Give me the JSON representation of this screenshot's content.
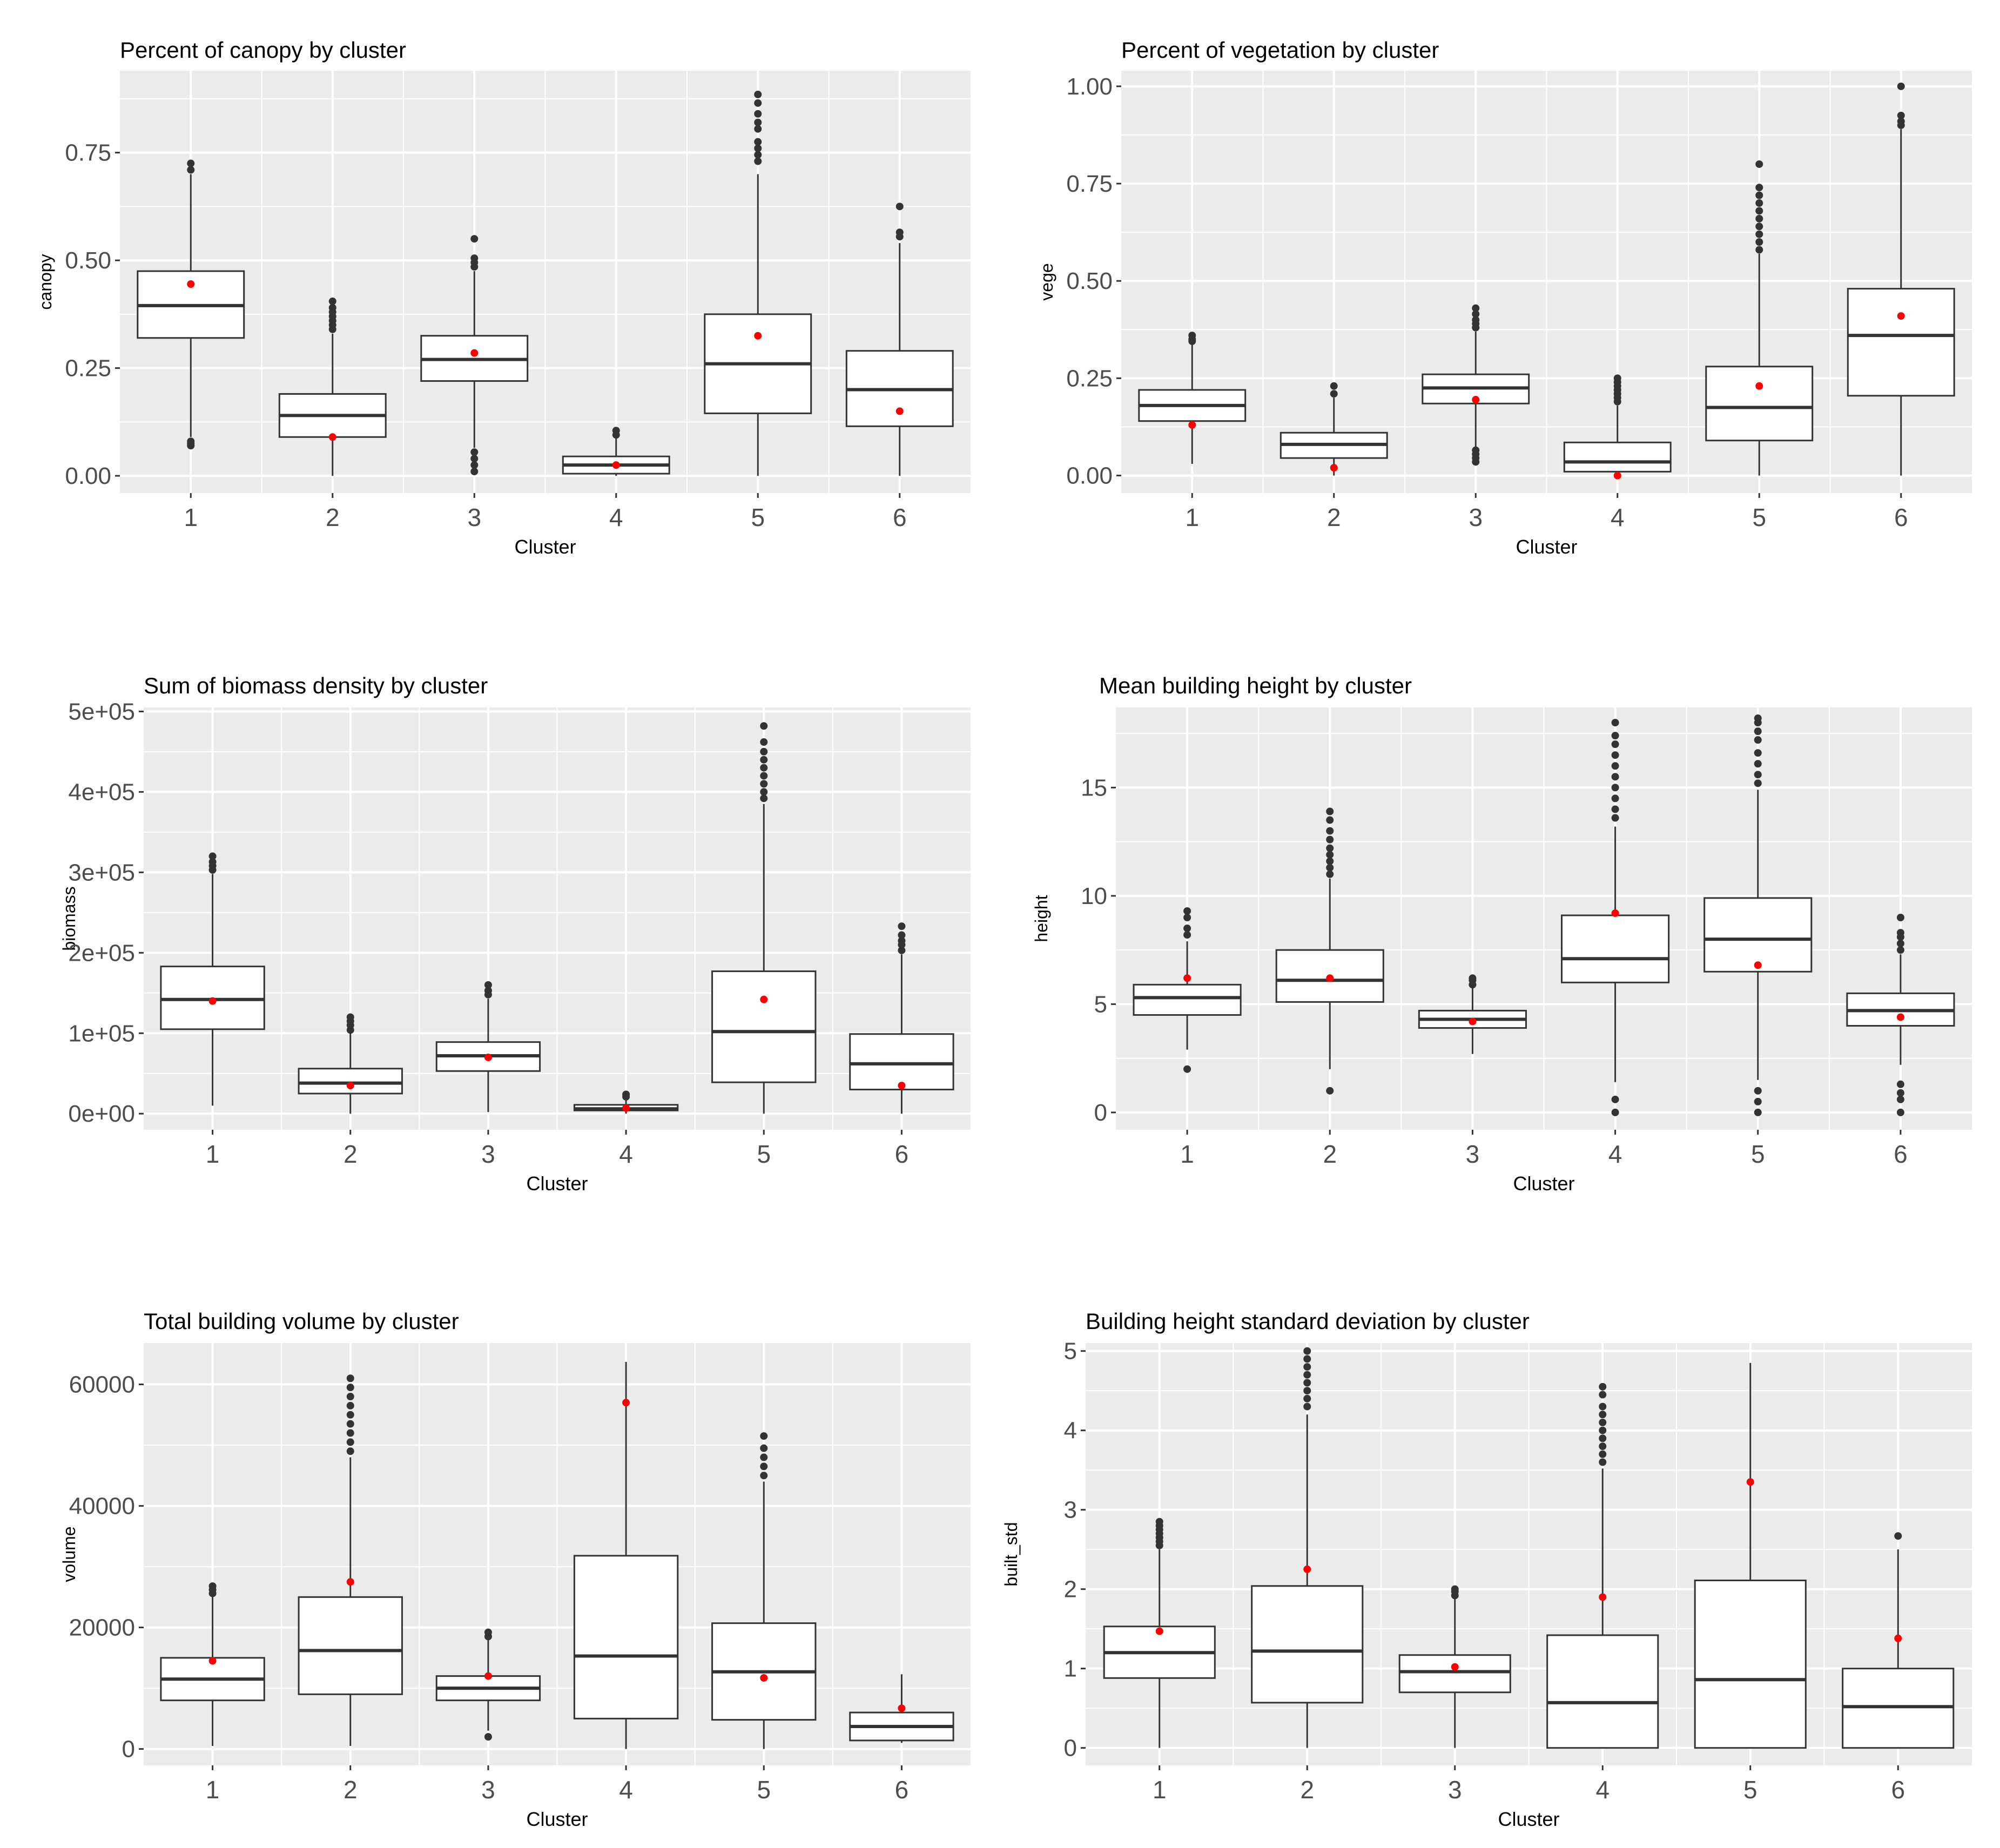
{
  "chart_data": [
    {
      "type": "boxplot",
      "title": "Percent of canopy by cluster",
      "xlabel": "Cluster",
      "ylabel": "canopy",
      "categories": [
        "1",
        "2",
        "3",
        "4",
        "5",
        "6"
      ],
      "ylim": [
        -0.04,
        0.94
      ],
      "yticks": [
        0,
        0.25,
        0.5,
        0.75
      ],
      "ytick_labels": [
        "0.00",
        "0.25",
        "0.50",
        "0.75"
      ],
      "boxes": [
        {
          "cluster": "1",
          "whisker_low": 0.09,
          "q1": 0.32,
          "median": 0.395,
          "q3": 0.475,
          "whisker_high": 0.7,
          "mean": 0.445,
          "outliers": [
            0.07,
            0.075,
            0.08,
            0.71,
            0.725
          ]
        },
        {
          "cluster": "2",
          "whisker_low": 0.0,
          "q1": 0.09,
          "median": 0.14,
          "q3": 0.19,
          "whisker_high": 0.33,
          "mean": 0.09,
          "outliers": [
            0.34,
            0.35,
            0.36,
            0.37,
            0.38,
            0.39,
            0.405
          ]
        },
        {
          "cluster": "3",
          "whisker_low": 0.065,
          "q1": 0.22,
          "median": 0.27,
          "q3": 0.325,
          "whisker_high": 0.475,
          "mean": 0.285,
          "outliers": [
            0.01,
            0.025,
            0.04,
            0.055,
            0.485,
            0.495,
            0.505,
            0.55
          ]
        },
        {
          "cluster": "4",
          "whisker_low": 0.0,
          "q1": 0.005,
          "median": 0.025,
          "q3": 0.045,
          "whisker_high": 0.09,
          "mean": 0.025,
          "outliers": [
            0.095,
            0.105
          ]
        },
        {
          "cluster": "5",
          "whisker_low": 0.0,
          "q1": 0.145,
          "median": 0.26,
          "q3": 0.375,
          "whisker_high": 0.7,
          "mean": 0.325,
          "outliers": [
            0.73,
            0.745,
            0.76,
            0.775,
            0.805,
            0.82,
            0.84,
            0.865,
            0.885
          ]
        },
        {
          "cluster": "6",
          "whisker_low": 0.0,
          "q1": 0.115,
          "median": 0.2,
          "q3": 0.29,
          "whisker_high": 0.54,
          "mean": 0.15,
          "outliers": [
            0.555,
            0.565,
            0.625
          ]
        }
      ]
    },
    {
      "type": "boxplot",
      "title": "Percent of vegetation by cluster",
      "xlabel": "Cluster",
      "ylabel": "vege",
      "categories": [
        "1",
        "2",
        "3",
        "4",
        "5",
        "6"
      ],
      "ylim": [
        -0.045,
        1.04
      ],
      "yticks": [
        0,
        0.25,
        0.5,
        0.75,
        1.0
      ],
      "ytick_labels": [
        "0.00",
        "0.25",
        "0.50",
        "0.75",
        "1.00"
      ],
      "boxes": [
        {
          "cluster": "1",
          "whisker_low": 0.03,
          "q1": 0.14,
          "median": 0.18,
          "q3": 0.22,
          "whisker_high": 0.34,
          "mean": 0.13,
          "outliers": [
            0.345,
            0.35,
            0.36
          ]
        },
        {
          "cluster": "2",
          "whisker_low": 0.0,
          "q1": 0.045,
          "median": 0.08,
          "q3": 0.11,
          "whisker_high": 0.2,
          "mean": 0.02,
          "outliers": [
            0.21,
            0.23
          ]
        },
        {
          "cluster": "3",
          "whisker_low": 0.065,
          "q1": 0.185,
          "median": 0.225,
          "q3": 0.26,
          "whisker_high": 0.37,
          "mean": 0.195,
          "outliers": [
            0.035,
            0.045,
            0.055,
            0.065,
            0.38,
            0.39,
            0.4,
            0.415,
            0.43
          ]
        },
        {
          "cluster": "4",
          "whisker_low": 0.0,
          "q1": 0.01,
          "median": 0.035,
          "q3": 0.085,
          "whisker_high": 0.18,
          "mean": 0.0,
          "outliers": [
            0.19,
            0.2,
            0.21,
            0.22,
            0.23,
            0.24,
            0.25
          ]
        },
        {
          "cluster": "5",
          "whisker_low": 0.0,
          "q1": 0.09,
          "median": 0.175,
          "q3": 0.28,
          "whisker_high": 0.57,
          "mean": 0.23,
          "outliers": [
            0.58,
            0.6,
            0.62,
            0.64,
            0.66,
            0.68,
            0.7,
            0.72,
            0.74,
            0.8
          ]
        },
        {
          "cluster": "6",
          "whisker_low": 0.0,
          "q1": 0.205,
          "median": 0.36,
          "q3": 0.48,
          "whisker_high": 0.89,
          "mean": 0.41,
          "outliers": [
            0.9,
            0.91,
            0.925,
            1.0
          ]
        }
      ]
    },
    {
      "type": "boxplot",
      "title": "Sum of biomass density by cluster",
      "xlabel": "Cluster",
      "ylabel": "biomass",
      "categories": [
        "1",
        "2",
        "3",
        "4",
        "5",
        "6"
      ],
      "ylim": [
        -20000,
        505000
      ],
      "yticks": [
        0,
        100000,
        200000,
        300000,
        400000,
        500000
      ],
      "ytick_labels": [
        "0e+00",
        "1e+05",
        "2e+05",
        "3e+05",
        "4e+05",
        "5e+05"
      ],
      "boxes": [
        {
          "cluster": "1",
          "whisker_low": 10000,
          "q1": 105000,
          "median": 142000,
          "q3": 183000,
          "whisker_high": 298000,
          "mean": 140000,
          "outliers": [
            303000,
            308000,
            313000,
            320000
          ]
        },
        {
          "cluster": "2",
          "whisker_low": 0,
          "q1": 25000,
          "median": 38000,
          "q3": 56000,
          "whisker_high": 100000,
          "mean": 35000,
          "outliers": [
            104000,
            110000,
            115000,
            120000
          ]
        },
        {
          "cluster": "3",
          "whisker_low": 2000,
          "q1": 53000,
          "median": 72000,
          "q3": 89000,
          "whisker_high": 143000,
          "mean": 70000,
          "outliers": [
            148000,
            153000,
            160000
          ]
        },
        {
          "cluster": "4",
          "whisker_low": 0,
          "q1": 4000,
          "median": 6000,
          "q3": 11000,
          "whisker_high": 19000,
          "mean": 7000,
          "outliers": [
            21000,
            24000
          ]
        },
        {
          "cluster": "5",
          "whisker_low": 0,
          "q1": 39000,
          "median": 102000,
          "q3": 177000,
          "whisker_high": 385000,
          "mean": 142000,
          "outliers": [
            392000,
            400000,
            410000,
            420000,
            430000,
            440000,
            450000,
            462000,
            482000
          ]
        },
        {
          "cluster": "6",
          "whisker_low": 0,
          "q1": 30000,
          "median": 62000,
          "q3": 99000,
          "whisker_high": 198000,
          "mean": 35000,
          "outliers": [
            203000,
            210000,
            215000,
            222000,
            233000
          ]
        }
      ]
    },
    {
      "type": "boxplot",
      "title": "Mean building height by cluster",
      "xlabel": "Cluster",
      "ylabel": "height",
      "categories": [
        "1",
        "2",
        "3",
        "4",
        "5",
        "6"
      ],
      "ylim": [
        -0.8,
        18.7
      ],
      "yticks": [
        0,
        5,
        10,
        15
      ],
      "ytick_labels": [
        "0",
        "5",
        "10",
        "15"
      ],
      "boxes": [
        {
          "cluster": "1",
          "whisker_low": 2.9,
          "q1": 4.5,
          "median": 5.3,
          "q3": 5.9,
          "whisker_high": 7.9,
          "mean": 6.2,
          "outliers": [
            2.0,
            8.2,
            8.5,
            9.0,
            9.3
          ]
        },
        {
          "cluster": "2",
          "whisker_low": 2.0,
          "q1": 5.1,
          "median": 6.1,
          "q3": 7.5,
          "whisker_high": 10.8,
          "mean": 6.2,
          "outliers": [
            1.0,
            11.0,
            11.3,
            11.6,
            11.9,
            12.2,
            12.6,
            13.0,
            13.5,
            13.9
          ]
        },
        {
          "cluster": "3",
          "whisker_low": 2.7,
          "q1": 3.9,
          "median": 4.3,
          "q3": 4.7,
          "whisker_high": 5.8,
          "mean": 4.2,
          "outliers": [
            5.9,
            6.1,
            6.2
          ]
        },
        {
          "cluster": "4",
          "whisker_low": 1.4,
          "q1": 6.0,
          "median": 7.1,
          "q3": 9.1,
          "whisker_high": 13.2,
          "mean": 9.2,
          "outliers": [
            0.0,
            0.6,
            13.6,
            14.0,
            14.5,
            15.0,
            15.5,
            16.0,
            16.5,
            17.0,
            17.4,
            18.0
          ]
        },
        {
          "cluster": "5",
          "whisker_low": 1.5,
          "q1": 6.5,
          "median": 8.0,
          "q3": 9.9,
          "whisker_high": 14.9,
          "mean": 6.8,
          "outliers": [
            0.0,
            0.5,
            1.0,
            15.2,
            15.6,
            16.1,
            16.6,
            17.2,
            17.6,
            18.0,
            18.2
          ]
        },
        {
          "cluster": "6",
          "whisker_low": 2.2,
          "q1": 4.0,
          "median": 4.7,
          "q3": 5.5,
          "whisker_high": 7.3,
          "mean": 4.4,
          "outliers": [
            0.0,
            0.6,
            0.9,
            1.3,
            7.5,
            7.8,
            8.1,
            8.3,
            9.0
          ]
        }
      ]
    },
    {
      "type": "boxplot",
      "title": "Total building volume by cluster",
      "xlabel": "Cluster",
      "ylabel": "volume",
      "categories": [
        "1",
        "2",
        "3",
        "4",
        "5",
        "6"
      ],
      "ylim": [
        -2700,
        66800
      ],
      "yticks": [
        0,
        20000,
        40000,
        60000
      ],
      "ytick_labels": [
        "0",
        "20000",
        "40000",
        "60000"
      ],
      "boxes": [
        {
          "cluster": "1",
          "whisker_low": 500,
          "q1": 8000,
          "median": 11500,
          "q3": 15000,
          "whisker_high": 25000,
          "mean": 14500,
          "outliers": [
            25600,
            26200,
            26800
          ]
        },
        {
          "cluster": "2",
          "whisker_low": 500,
          "q1": 9000,
          "median": 16200,
          "q3": 25000,
          "whisker_high": 48000,
          "mean": 27500,
          "outliers": [
            49000,
            50500,
            52000,
            53500,
            55000,
            56500,
            58000,
            59500,
            61000
          ]
        },
        {
          "cluster": "3",
          "whisker_low": 3000,
          "q1": 8000,
          "median": 10000,
          "q3": 12000,
          "whisker_high": 18000,
          "mean": 12000,
          "outliers": [
            2000,
            18500,
            19200
          ]
        },
        {
          "cluster": "4",
          "whisker_low": 0,
          "q1": 5000,
          "median": 15300,
          "q3": 31800,
          "whisker_high": 63700,
          "mean": 57000,
          "outliers": []
        },
        {
          "cluster": "5",
          "whisker_low": 0,
          "q1": 4800,
          "median": 12700,
          "q3": 20700,
          "whisker_high": 44000,
          "mean": 11700,
          "outliers": [
            45000,
            46500,
            48000,
            49500,
            51500
          ]
        },
        {
          "cluster": "6",
          "whisker_low": 1000,
          "q1": 1400,
          "median": 3700,
          "q3": 6000,
          "whisker_high": 12300,
          "mean": 6700,
          "outliers": []
        }
      ]
    },
    {
      "type": "boxplot",
      "title": "Building height standard deviation by cluster",
      "xlabel": "Cluster",
      "ylabel": "built_std",
      "categories": [
        "1",
        "2",
        "3",
        "4",
        "5",
        "6"
      ],
      "ylim": [
        -0.22,
        5.1
      ],
      "yticks": [
        0,
        1,
        2,
        3,
        4,
        5
      ],
      "ytick_labels": [
        "0",
        "1",
        "2",
        "3",
        "4",
        "5"
      ],
      "boxes": [
        {
          "cluster": "1",
          "whisker_low": 0.0,
          "q1": 0.88,
          "median": 1.2,
          "q3": 1.53,
          "whisker_high": 2.5,
          "mean": 1.47,
          "outliers": [
            2.55,
            2.6,
            2.65,
            2.7,
            2.75,
            2.8,
            2.85
          ]
        },
        {
          "cluster": "2",
          "whisker_low": 0.0,
          "q1": 0.57,
          "median": 1.22,
          "q3": 2.04,
          "whisker_high": 4.2,
          "mean": 2.25,
          "outliers": [
            4.3,
            4.4,
            4.5,
            4.6,
            4.7,
            4.8,
            4.9,
            5.0
          ]
        },
        {
          "cluster": "3",
          "whisker_low": 0.0,
          "q1": 0.7,
          "median": 0.96,
          "q3": 1.17,
          "whisker_high": 1.88,
          "mean": 1.02,
          "outliers": [
            1.92,
            1.97,
            2.0
          ]
        },
        {
          "cluster": "4",
          "whisker_low": 0.0,
          "q1": 0.0,
          "median": 0.57,
          "q3": 1.42,
          "whisker_high": 3.52,
          "mean": 1.9,
          "outliers": [
            3.6,
            3.7,
            3.8,
            3.9,
            4.0,
            4.1,
            4.2,
            4.3,
            4.45,
            4.55
          ]
        },
        {
          "cluster": "5",
          "whisker_low": 0.0,
          "q1": 0.0,
          "median": 0.86,
          "q3": 2.11,
          "whisker_high": 4.85,
          "mean": 3.35,
          "outliers": []
        },
        {
          "cluster": "6",
          "whisker_low": 0.0,
          "q1": 0.0,
          "median": 0.52,
          "q3": 1.0,
          "whisker_high": 2.5,
          "mean": 1.38,
          "outliers": [
            2.67
          ]
        }
      ]
    }
  ]
}
